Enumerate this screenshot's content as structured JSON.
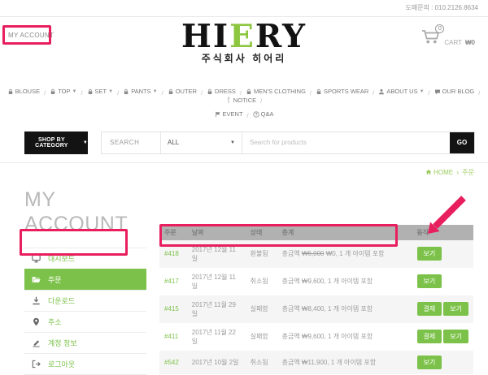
{
  "topbar": {
    "wholesale_inquiry": "도매문의 : 010.2126.8634"
  },
  "header": {
    "my_account_link": "MY ACCOUNT",
    "logo": {
      "part1": "HI",
      "accent": "E",
      "part2": "RY",
      "subtitle": "주식회사 히어리"
    },
    "cart": {
      "count": "0",
      "label": "CART",
      "amount": "₩0"
    }
  },
  "nav": {
    "separator": "/",
    "row1": [
      {
        "label": "BLOUSE",
        "icon": "lock-icon",
        "caret": false
      },
      {
        "label": "TOP",
        "icon": "lock-icon",
        "caret": true
      },
      {
        "label": "SET",
        "icon": "lock-icon",
        "caret": true
      },
      {
        "label": "PANTS",
        "icon": "lock-icon",
        "caret": true
      },
      {
        "label": "OUTER",
        "icon": "lock-icon",
        "caret": false
      },
      {
        "label": "DRESS",
        "icon": "lock-icon",
        "caret": false
      },
      {
        "label": "MEN'S CLOTHING",
        "icon": "lock-icon",
        "caret": false
      },
      {
        "label": "SPORTS WEAR",
        "icon": "lock-icon",
        "caret": false
      },
      {
        "label": "ABOUT US",
        "icon": "user-icon",
        "caret": true
      },
      {
        "label": "OUR BLOG",
        "icon": "comment-icon",
        "caret": false
      },
      {
        "label": "NOTICE",
        "icon": "exclamation-icon",
        "caret": false
      }
    ],
    "row2": [
      {
        "label": "EVENT",
        "icon": "flag-icon",
        "caret": false
      },
      {
        "label": "Q&A",
        "icon": "question-icon",
        "caret": false
      }
    ]
  },
  "search": {
    "shop_by_category": "SHOP BY CATEGORY",
    "search_label": "SEARCH",
    "category_selected": "ALL",
    "placeholder": "Search for products",
    "go": "GO"
  },
  "breadcrumb": {
    "home": "HOME",
    "separator": "›",
    "current": "주문"
  },
  "account": {
    "title": "MY ACCOUNT",
    "menu": [
      {
        "label": "대시보드",
        "icon": "dashboard-icon",
        "active": false
      },
      {
        "label": "주문",
        "icon": "orders-folder-icon",
        "active": true
      },
      {
        "label": "다운로드",
        "icon": "download-icon",
        "active": false
      },
      {
        "label": "주소",
        "icon": "map-marker-icon",
        "active": false
      },
      {
        "label": "계정 정보",
        "icon": "edit-icon",
        "active": false
      },
      {
        "label": "로그아웃",
        "icon": "logout-icon",
        "active": false
      }
    ]
  },
  "orders": {
    "columns": [
      "주문",
      "날짜",
      "상태",
      "총계",
      "동작"
    ],
    "rows": [
      {
        "id": "#418",
        "date": "2017년 12월 11일",
        "status": "환불됨",
        "total": {
          "label": "총금액",
          "old_amount": "₩6,000",
          "amount": "₩0",
          "suffix": ", 1 개 아이템 포함"
        },
        "actions": [
          "보기"
        ],
        "highlighted": true
      },
      {
        "id": "#417",
        "date": "2017년 12월 11일",
        "status": "취소됨",
        "total": {
          "label": "총금액",
          "old_amount": null,
          "amount": "₩9,600",
          "suffix": ", 1 개 아이템 포함"
        },
        "actions": [
          "보기"
        ],
        "highlighted": false
      },
      {
        "id": "#415",
        "date": "2017년 11월 29일",
        "status": "실패함",
        "total": {
          "label": "총금액",
          "old_amount": null,
          "amount": "₩8,400",
          "suffix": ", 1 개 아이템 포함"
        },
        "actions": [
          "결제",
          "보기"
        ],
        "highlighted": false
      },
      {
        "id": "#411",
        "date": "2017년 11월 22일",
        "status": "실패함",
        "total": {
          "label": "총금액",
          "old_amount": null,
          "amount": "₩9,600",
          "suffix": ", 1 개 아이템 포함"
        },
        "actions": [
          "결제",
          "보기"
        ],
        "highlighted": false
      },
      {
        "id": "#542",
        "date": "2017년 10월 2일",
        "status": "취소됨",
        "total": {
          "label": "총금액",
          "old_amount": null,
          "amount": "₩11,900",
          "suffix": ", 1 개 아이템 포함"
        },
        "actions": [
          "보기"
        ],
        "highlighted": false
      }
    ]
  },
  "annotations": {
    "color": "#e81e5e"
  }
}
